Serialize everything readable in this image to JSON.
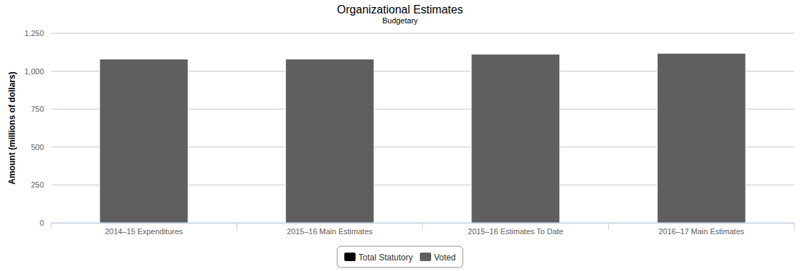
{
  "chart_data": {
    "type": "bar",
    "title": "Organizational Estimates",
    "subtitle": "Budgetary",
    "y_label": "Amount (millions of dollars)",
    "categories": [
      "2014–15 Expenditures",
      "2015–16 Main Estimates",
      "2015–16 Estimates To Date",
      "2016–17 Main Estimates"
    ],
    "series": [
      {
        "name": "Total Statutory",
        "color": "#000000",
        "values": [
          0,
          0,
          0,
          0
        ]
      },
      {
        "name": "Voted",
        "color": "#5f5f5f",
        "values": [
          1080,
          1080,
          1112,
          1118
        ]
      }
    ],
    "ylim": [
      0,
      1250
    ],
    "yticks": [
      0,
      250,
      500,
      750,
      {
        "value": 1000,
        "label": "1,000"
      },
      {
        "value": 1250,
        "label": "1,250"
      }
    ],
    "grid": true,
    "stacked": true,
    "legend": "bottom"
  }
}
